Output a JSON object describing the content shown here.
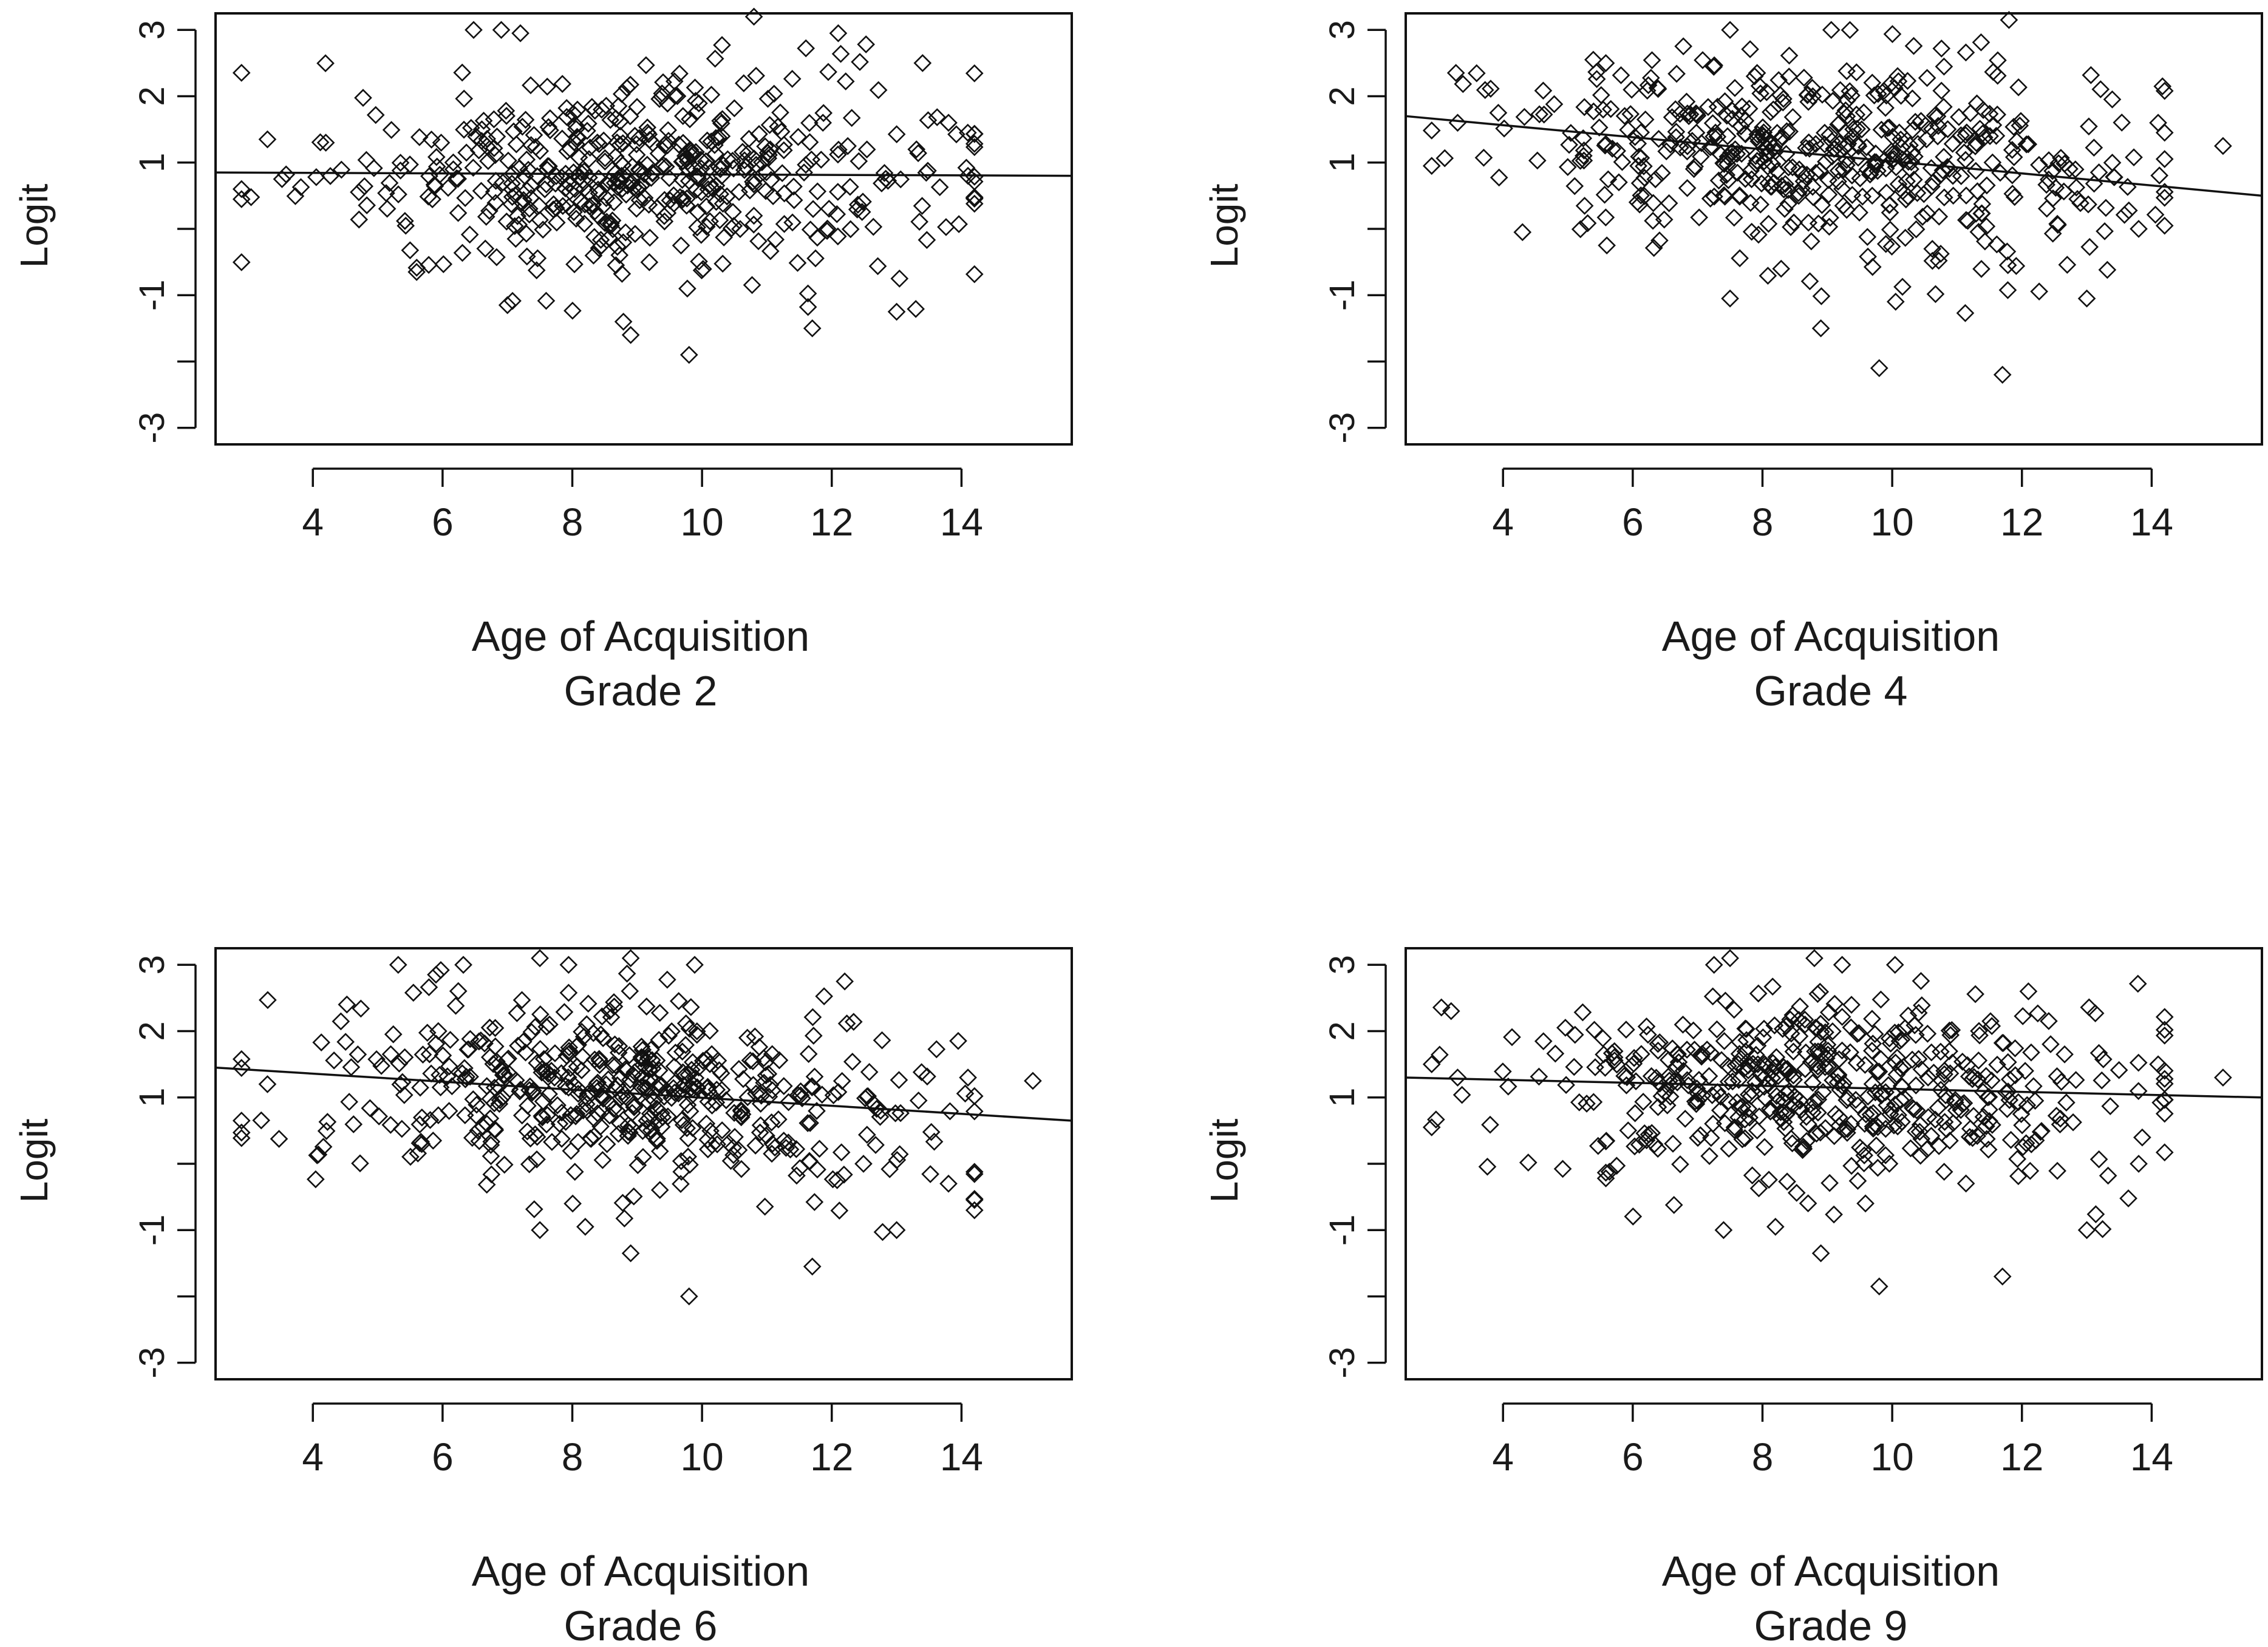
{
  "chart_data": [
    {
      "type": "scatter",
      "title": "",
      "xlabel": "Age of Acquisition",
      "subtitle": "Grade 2",
      "ylabel": "Logit",
      "xlim": [
        2.5,
        15.7
      ],
      "ylim": [
        -3.25,
        3.25
      ],
      "xticks": [
        4,
        6,
        8,
        10,
        12,
        14
      ],
      "yticks": [
        3,
        2,
        1,
        -1,
        -3
      ],
      "grid": false,
      "trend_line": {
        "x": [
          2.5,
          15.7
        ],
        "y": [
          0.85,
          0.8
        ]
      },
      "seed": 2,
      "n_points": 520,
      "x_center": 9.0,
      "x_spread": 2.3,
      "y_center": 0.85,
      "y_spread": 0.75,
      "outliers": [
        {
          "x": 8.9,
          "y": -1.6
        },
        {
          "x": 9.8,
          "y": -1.9
        },
        {
          "x": 11.7,
          "y": -1.5
        },
        {
          "x": 13.0,
          "y": -1.25
        },
        {
          "x": 7.0,
          "y": -1.15
        },
        {
          "x": 10.8,
          "y": 3.2
        },
        {
          "x": 12.1,
          "y": 2.95
        },
        {
          "x": 7.2,
          "y": 2.95
        },
        {
          "x": 13.4,
          "y": 2.5
        },
        {
          "x": 5.6,
          "y": -0.65
        },
        {
          "x": 2.9,
          "y": 0.6
        },
        {
          "x": 3.3,
          "y": 1.35
        },
        {
          "x": 14.1,
          "y": 0.8
        },
        {
          "x": 13.8,
          "y": 1.6
        },
        {
          "x": 4.2,
          "y": 1.3
        }
      ]
    },
    {
      "type": "scatter",
      "title": "",
      "xlabel": "Age of Acquisition",
      "subtitle": "Grade 4",
      "ylabel": "Logit",
      "xlim": [
        2.5,
        15.7
      ],
      "ylim": [
        -3.25,
        3.25
      ],
      "xticks": [
        4,
        6,
        8,
        10,
        12,
        14
      ],
      "yticks": [
        3,
        2,
        1,
        -1,
        -3
      ],
      "grid": false,
      "trend_line": {
        "x": [
          2.5,
          15.7
        ],
        "y": [
          1.7,
          0.5
        ]
      },
      "seed": 4,
      "n_points": 520,
      "x_center": 9.0,
      "x_spread": 2.3,
      "y_center": 1.1,
      "y_spread": 0.75,
      "outliers": [
        {
          "x": 9.8,
          "y": -2.1
        },
        {
          "x": 11.7,
          "y": -2.2
        },
        {
          "x": 8.9,
          "y": -1.5
        },
        {
          "x": 13.0,
          "y": -1.05
        },
        {
          "x": 7.5,
          "y": -1.05
        },
        {
          "x": 11.8,
          "y": 3.15
        },
        {
          "x": 7.5,
          "y": 3.0
        },
        {
          "x": 15.1,
          "y": 1.25
        },
        {
          "x": 14.1,
          "y": 1.6
        },
        {
          "x": 13.8,
          "y": 0.0
        },
        {
          "x": 2.9,
          "y": 0.95
        },
        {
          "x": 3.3,
          "y": 1.6
        },
        {
          "x": 5.6,
          "y": -0.25
        },
        {
          "x": 4.3,
          "y": -0.05
        }
      ]
    },
    {
      "type": "scatter",
      "title": "",
      "xlabel": "Age of Acquisition",
      "subtitle": "Grade 6",
      "ylabel": "Logit",
      "xlim": [
        2.5,
        15.7
      ],
      "ylim": [
        -3.25,
        3.25
      ],
      "xticks": [
        4,
        6,
        8,
        10,
        12,
        14
      ],
      "yticks": [
        3,
        2,
        1,
        -1,
        -3
      ],
      "grid": false,
      "trend_line": {
        "x": [
          2.5,
          15.7
        ],
        "y": [
          1.45,
          0.65
        ]
      },
      "seed": 6,
      "n_points": 520,
      "x_center": 9.0,
      "x_spread": 2.3,
      "y_center": 1.0,
      "y_spread": 0.75,
      "outliers": [
        {
          "x": 9.8,
          "y": -2.0
        },
        {
          "x": 11.7,
          "y": -1.55
        },
        {
          "x": 8.9,
          "y": -1.35
        },
        {
          "x": 13.0,
          "y": -1.0
        },
        {
          "x": 7.5,
          "y": -1.0
        },
        {
          "x": 8.2,
          "y": -0.95
        },
        {
          "x": 15.1,
          "y": 1.25
        },
        {
          "x": 14.1,
          "y": 1.3
        },
        {
          "x": 13.8,
          "y": -0.3
        },
        {
          "x": 2.9,
          "y": 0.65
        },
        {
          "x": 3.3,
          "y": 1.2
        },
        {
          "x": 7.5,
          "y": 3.1
        },
        {
          "x": 8.9,
          "y": 3.1
        },
        {
          "x": 12.2,
          "y": 2.75
        }
      ]
    },
    {
      "type": "scatter",
      "title": "",
      "xlabel": "Age of Acquisition",
      "subtitle": "Grade 9",
      "ylabel": "Logit",
      "xlim": [
        2.5,
        15.7
      ],
      "ylim": [
        -3.25,
        3.25
      ],
      "xticks": [
        4,
        6,
        8,
        10,
        12,
        14
      ],
      "yticks": [
        3,
        2,
        1,
        -1,
        -3
      ],
      "grid": false,
      "trend_line": {
        "x": [
          2.5,
          15.7
        ],
        "y": [
          1.3,
          1.0
        ]
      },
      "seed": 9,
      "n_points": 520,
      "x_center": 9.0,
      "x_spread": 2.3,
      "y_center": 1.15,
      "y_spread": 0.72,
      "outliers": [
        {
          "x": 9.8,
          "y": -1.85
        },
        {
          "x": 11.7,
          "y": -1.7
        },
        {
          "x": 8.9,
          "y": -1.35
        },
        {
          "x": 13.0,
          "y": -1.0
        },
        {
          "x": 7.4,
          "y": -1.0
        },
        {
          "x": 8.2,
          "y": -0.95
        },
        {
          "x": 15.1,
          "y": 1.3
        },
        {
          "x": 14.1,
          "y": 1.5
        },
        {
          "x": 13.8,
          "y": 0.0
        },
        {
          "x": 2.9,
          "y": 0.55
        },
        {
          "x": 3.3,
          "y": 1.3
        },
        {
          "x": 7.5,
          "y": 3.1
        },
        {
          "x": 8.8,
          "y": 3.1
        },
        {
          "x": 12.1,
          "y": 2.6
        }
      ]
    }
  ]
}
